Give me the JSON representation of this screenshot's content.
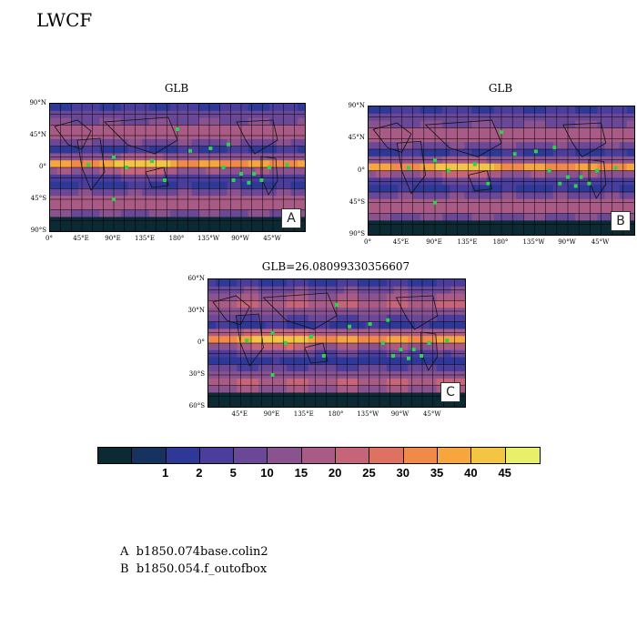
{
  "figure_title": "LWCF",
  "panels": [
    {
      "id": "A",
      "title": "GLB",
      "label": "A"
    },
    {
      "id": "B",
      "title": "GLB",
      "label": "B"
    },
    {
      "id": "C",
      "title": "GLB=26.08099330356607",
      "label": "C"
    }
  ],
  "axes_ab": {
    "yticks": [
      "90°N",
      "45°N",
      "0°",
      "45°S",
      "90°S"
    ],
    "xticks": [
      "0°",
      "45°E",
      "90°E",
      "135°E",
      "180°",
      "135°W",
      "90°W",
      "45°W"
    ]
  },
  "axes_c": {
    "yticks": [
      "60°N",
      "30°N",
      "0°",
      "30°S",
      "60°S"
    ],
    "xticks": [
      "45°E",
      "90°E",
      "135°E",
      "180°",
      "135°W",
      "90°W",
      "45°W"
    ]
  },
  "colorbar": {
    "colors": [
      "#0b2a33",
      "#16325e",
      "#2e3896",
      "#4b3d9c",
      "#6a4897",
      "#8a528f",
      "#a95b86",
      "#c6657a",
      "#df7163",
      "#f18a49",
      "#f6a63c",
      "#f4c543",
      "#e8f06a"
    ],
    "labels": [
      "1",
      "2",
      "5",
      "10",
      "15",
      "20",
      "25",
      "30",
      "35",
      "40",
      "45"
    ]
  },
  "legend": [
    {
      "key": "A",
      "name": "b1850.074base.colin2"
    },
    {
      "key": "B",
      "name": "b1850.054.f_outofbox"
    }
  ]
}
